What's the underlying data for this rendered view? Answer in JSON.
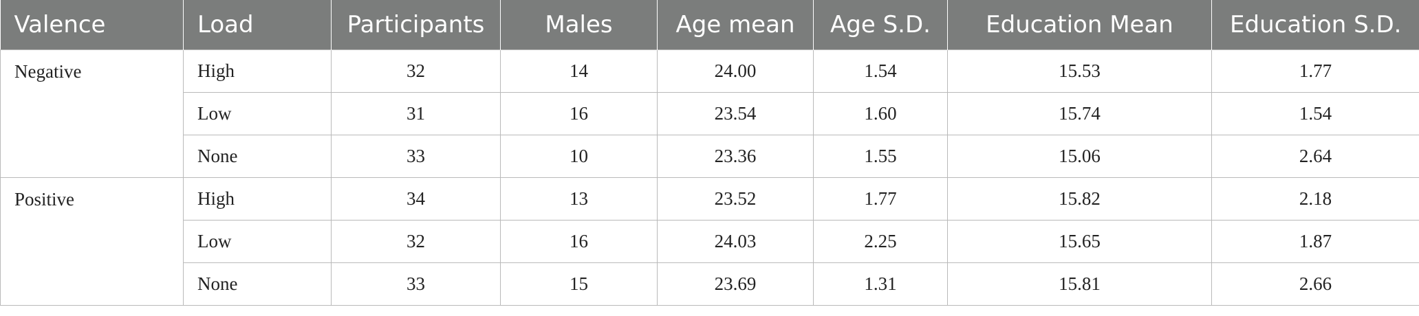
{
  "table": {
    "headers": [
      "Valence",
      "Load",
      "Participants",
      "Males",
      "Age mean",
      "Age S.D.",
      "Education Mean",
      "Education S.D."
    ],
    "groups": [
      {
        "valence": "Negative",
        "rows": [
          [
            "High",
            "32",
            "14",
            "24.00",
            "1.54",
            "15.53",
            "1.77"
          ],
          [
            "Low",
            "31",
            "16",
            "23.54",
            "1.60",
            "15.74",
            "1.54"
          ],
          [
            "None",
            "33",
            "10",
            "23.36",
            "1.55",
            "15.06",
            "2.64"
          ]
        ]
      },
      {
        "valence": "Positive",
        "rows": [
          [
            "High",
            "34",
            "13",
            "23.52",
            "1.77",
            "15.82",
            "2.18"
          ],
          [
            "Low",
            "32",
            "16",
            "24.03",
            "2.25",
            "15.65",
            "1.87"
          ],
          [
            "None",
            "33",
            "15",
            "23.69",
            "1.31",
            "15.81",
            "2.66"
          ]
        ]
      }
    ]
  }
}
